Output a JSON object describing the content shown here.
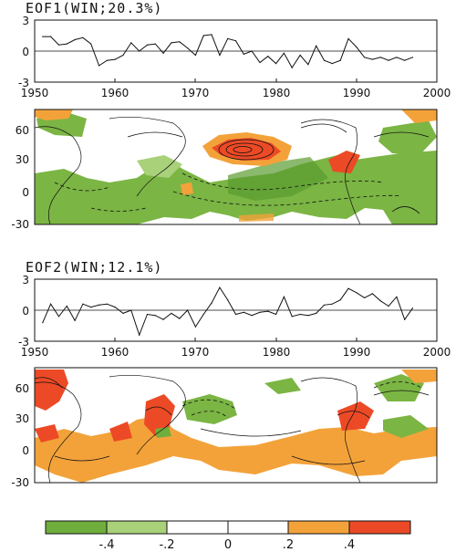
{
  "panels": [
    {
      "title": "EOF1(WIN;20.3%)",
      "timeseries": {
        "x_ticks": [
          "1950",
          "1960",
          "1970",
          "1980",
          "1990",
          "2000"
        ],
        "y_ticks": [
          "3",
          "0",
          "-3"
        ]
      },
      "map": {
        "y_ticks": [
          "60",
          "30",
          "0",
          "-30"
        ]
      }
    },
    {
      "title": "EOF2(WIN;12.1%)",
      "timeseries": {
        "x_ticks": [
          "1950",
          "1960",
          "1970",
          "1980",
          "1990",
          "2000"
        ],
        "y_ticks": [
          "3",
          "0",
          "-3"
        ]
      },
      "map": {
        "y_ticks": [
          "60",
          "30",
          "0",
          "-30"
        ]
      }
    }
  ],
  "colorbar": {
    "labels": [
      "-.4",
      "-.2",
      "0",
      ".2",
      ".4"
    ],
    "colors": [
      "#6fae3c",
      "#a8d17a",
      "#ffffff",
      "#f3a23a",
      "#ec4a26"
    ]
  },
  "colors": {
    "neg_strong": "#6fae3c",
    "neg_weak": "#9dcb6a",
    "pos_weak": "#f3a23a",
    "pos_strong": "#ec4a26",
    "line": "#111111"
  },
  "chart_data": [
    {
      "type": "line",
      "title": "EOF1(WIN;20.3%)",
      "xlim": [
        1950,
        2000
      ],
      "ylim": [
        -3,
        3
      ],
      "x": [
        1951,
        1952,
        1953,
        1954,
        1955,
        1956,
        1957,
        1958,
        1959,
        1960,
        1961,
        1962,
        1963,
        1964,
        1965,
        1966,
        1967,
        1968,
        1969,
        1970,
        1971,
        1972,
        1973,
        1974,
        1975,
        1976,
        1977,
        1978,
        1979,
        1980,
        1981,
        1982,
        1983,
        1984,
        1985,
        1986,
        1987,
        1988,
        1989,
        1990,
        1991,
        1992,
        1993,
        1994,
        1995,
        1996,
        1997
      ],
      "y": [
        1.4,
        1.4,
        0.6,
        0.7,
        1.1,
        1.3,
        0.7,
        -1.4,
        -0.9,
        -0.8,
        -0.4,
        0.8,
        0.0,
        0.6,
        0.7,
        -0.2,
        0.8,
        0.9,
        0.3,
        -0.4,
        1.5,
        1.6,
        -0.4,
        1.2,
        1.0,
        -0.3,
        0.0,
        -1.1,
        -0.5,
        -1.2,
        -0.2,
        -1.6,
        -0.4,
        -1.3,
        0.5,
        -0.9,
        -1.2,
        -0.9,
        1.2,
        0.4,
        -0.6,
        -0.8,
        -0.6,
        -0.9,
        -0.6,
        -0.9,
        -0.6
      ]
    },
    {
      "type": "line",
      "title": "EOF2(WIN;12.1%)",
      "xlim": [
        1950,
        2000
      ],
      "ylim": [
        -3,
        3
      ],
      "x": [
        1951,
        1952,
        1953,
        1954,
        1955,
        1956,
        1957,
        1958,
        1959,
        1960,
        1961,
        1962,
        1963,
        1964,
        1965,
        1966,
        1967,
        1968,
        1969,
        1970,
        1971,
        1972,
        1973,
        1974,
        1975,
        1976,
        1977,
        1978,
        1979,
        1980,
        1981,
        1982,
        1983,
        1984,
        1985,
        1986,
        1987,
        1988,
        1989,
        1990,
        1991,
        1992,
        1993,
        1994,
        1995,
        1996,
        1997
      ],
      "y": [
        -1.2,
        0.6,
        -0.6,
        0.4,
        -1.0,
        0.6,
        0.3,
        0.5,
        0.6,
        0.3,
        -0.3,
        0.0,
        -2.4,
        -0.4,
        -0.5,
        -0.9,
        -0.3,
        -0.8,
        0.0,
        -1.6,
        -0.4,
        0.7,
        2.2,
        1.0,
        -0.4,
        -0.2,
        -0.5,
        -0.2,
        -0.1,
        -0.4,
        1.3,
        -0.6,
        -0.4,
        -0.5,
        -0.3,
        0.5,
        0.6,
        1.0,
        2.1,
        1.7,
        1.2,
        1.6,
        0.9,
        0.4,
        1.3,
        -0.9,
        0.2
      ]
    }
  ]
}
